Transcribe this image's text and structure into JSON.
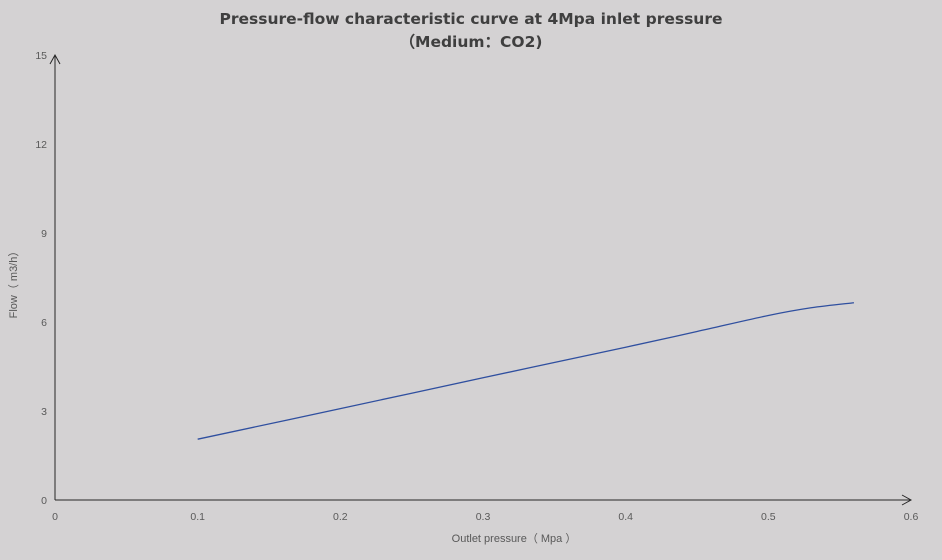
{
  "chart_data": {
    "type": "line",
    "title_line1": "Pressure-flow characteristic curve at 4Mpa inlet pressure",
    "title_line2": "（Medium：CO2)",
    "xlabel": "Outlet pressure（ Mpa ）",
    "ylabel": "Flow（ m3/h）",
    "xlim": [
      0,
      0.6
    ],
    "ylim": [
      0,
      15
    ],
    "x_ticks": [
      "0",
      "0.1",
      "0.2",
      "0.3",
      "0.4",
      "0.5",
      "0.6"
    ],
    "y_ticks": [
      "0",
      "3",
      "6",
      "9",
      "12",
      "15"
    ],
    "grid": false,
    "series": [
      {
        "color": "#2f4f9f",
        "x": [
          0.1,
          0.2,
          0.3,
          0.4,
          0.45,
          0.5,
          0.53,
          0.56
        ],
        "y": [
          2.05,
          3.08,
          4.12,
          5.15,
          5.68,
          6.22,
          6.48,
          6.65
        ]
      }
    ]
  },
  "colors": {
    "background": "#d4d2d3",
    "axis": "#262626",
    "series": "#2f4f9f"
  }
}
